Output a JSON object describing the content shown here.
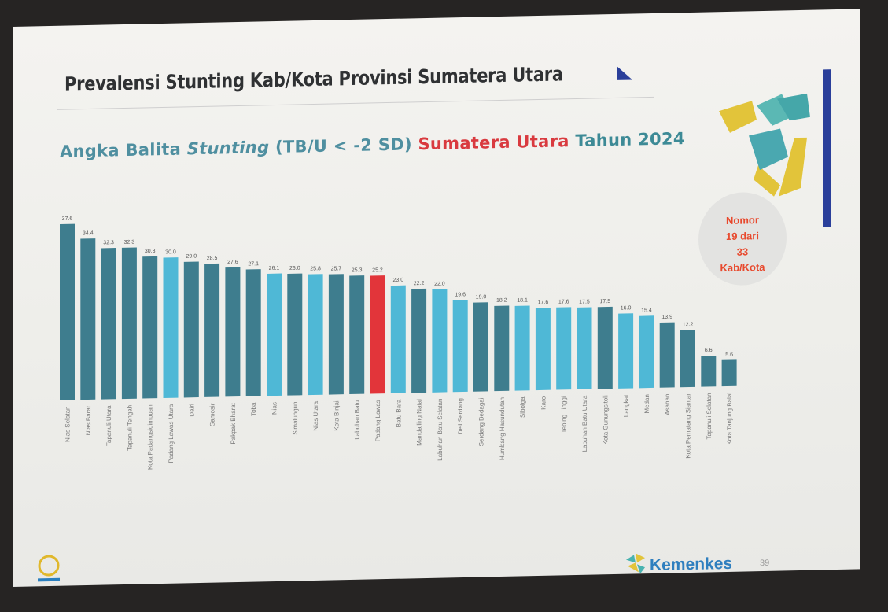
{
  "slide": {
    "title": "Prevalensi Stunting Kab/Kota Provinsi Sumatera Utara",
    "subtitle_a": "Angka Balita ",
    "subtitle_b": "Stunting",
    "subtitle_c": " (TB/U < -2 SD) ",
    "subtitle_red": "Sumatera Utara",
    "subtitle_d": " Tahun 2024",
    "rank_line1": "Nomor",
    "rank_line2": "19 dari",
    "rank_line3": "33",
    "rank_line4": "Kab/Kota",
    "footer_brand": "Kemenkes",
    "footer_page": "39",
    "colors": {
      "dark_bar": "#3e7d8e",
      "light_bar": "#4fb8d6",
      "highlight_bar": "#e2353a",
      "rank_text": "#e8492d",
      "footer_bar": "#2448a0"
    }
  },
  "chart_data": {
    "type": "bar",
    "categories": [
      "Nias Selatan",
      "Nias Barat",
      "Tapanuli Utara",
      "Tapanuli Tengah",
      "Kota Padangsidimpuan",
      "Padang Lawas Utara",
      "Dairi",
      "Samosir",
      "Pakpak Bharat",
      "Toba",
      "Nias",
      "Simalungun",
      "Nias Utara",
      "Kota Binjai",
      "Labuhan Batu",
      "Padang Lawas",
      "Batu Bara",
      "Mandailing Natal",
      "Labuhan Batu Selatan",
      "Deli Serdang",
      "Serdang Bedagai",
      "Humbang Hasundutan",
      "Sibolga",
      "Karo",
      "Tebing Tinggi",
      "Labuhan Batu Utara",
      "Kota Gunungsitoli",
      "Langkat",
      "Medan",
      "Asahan",
      "Kota Pematang Siantar",
      "Tapanuli Selatan",
      "Kota Tanjung Balai"
    ],
    "values": [
      37.6,
      34.4,
      32.3,
      32.3,
      30.3,
      30.0,
      29.0,
      28.5,
      27.6,
      27.1,
      26.1,
      26.0,
      25.8,
      25.7,
      25.3,
      25.2,
      23.0,
      22.2,
      22.0,
      19.6,
      19.0,
      18.2,
      18.1,
      17.6,
      17.6,
      17.5,
      17.5,
      16.0,
      15.4,
      13.9,
      12.2,
      6.6,
      5.6
    ],
    "value_labels": [
      "37.6",
      "34.4",
      "32.3",
      "32.3",
      "30.3",
      "30.0",
      "29.0",
      "28.5",
      "27.6",
      "27.1",
      "26.1",
      "26.0",
      "25.8",
      "25.7",
      "25.3",
      "25.2",
      "23.0",
      "22.2",
      "22.0",
      "19.6",
      "19.0",
      "18.2",
      "18.1",
      "17.6",
      "17.6",
      "17.5",
      "17.5",
      "16.0",
      "15.4",
      "13.9",
      "12.2",
      "6.6",
      "5.6"
    ],
    "bar_color": [
      "dark",
      "dark",
      "dark",
      "dark",
      "dark",
      "light",
      "dark",
      "dark",
      "dark",
      "dark",
      "light",
      "dark",
      "light",
      "dark",
      "dark",
      "highlight",
      "light",
      "dark",
      "light",
      "light",
      "dark",
      "dark",
      "light",
      "light",
      "light",
      "light",
      "dark",
      "light",
      "light",
      "dark",
      "dark",
      "dark",
      "dark"
    ],
    "ylim": [
      0,
      40
    ],
    "grid": false,
    "xlabel": "",
    "ylabel": "",
    "legend": "none"
  }
}
